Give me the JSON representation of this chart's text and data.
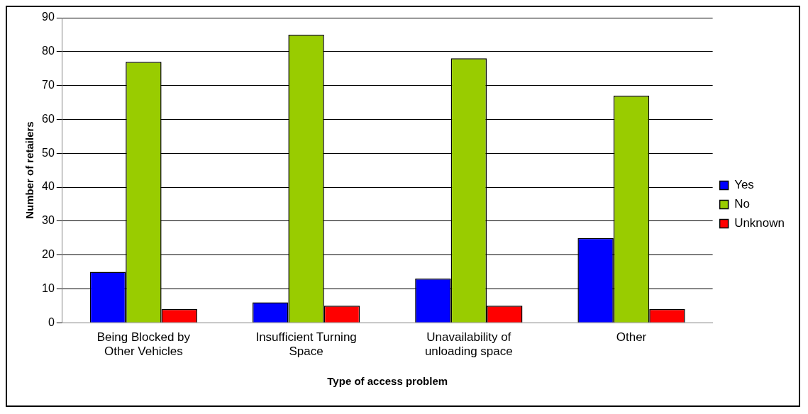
{
  "chart_data": {
    "type": "bar",
    "xlabel": "Type of access problem",
    "ylabel": "Number of retailers",
    "categories": [
      "Being Blocked by Other Vehicles",
      "Insufficient Turning Space",
      "Unavailability of unloading space",
      "Other"
    ],
    "series": [
      {
        "name": "Yes",
        "color": "#0000ff",
        "values": [
          15,
          6,
          13,
          25
        ]
      },
      {
        "name": "No",
        "color": "#99cc00",
        "values": [
          77,
          85,
          78,
          67
        ]
      },
      {
        "name": "Unknown",
        "color": "#ff0000",
        "values": [
          4,
          5,
          5,
          4
        ]
      }
    ],
    "ylim": [
      0,
      90
    ],
    "yticks": [
      0,
      10,
      20,
      30,
      40,
      50,
      60,
      70,
      80,
      90
    ],
    "grid": "y",
    "legend": "right"
  }
}
